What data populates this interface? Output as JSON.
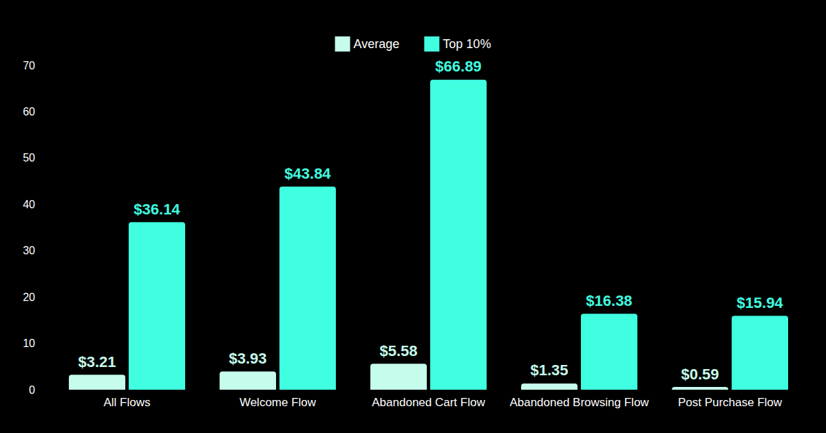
{
  "chart_data": {
    "type": "bar",
    "categories": [
      "All Flows",
      "Welcome Flow",
      "Abandoned Cart Flow",
      "Abandoned Browsing Flow",
      "Post Purchase Flow"
    ],
    "series": [
      {
        "name": "Average",
        "color": "#c6fcec",
        "values": [
          3.21,
          3.93,
          5.58,
          1.35,
          0.59
        ],
        "value_labels": [
          "$3.21",
          "$3.93",
          "$5.58",
          "$1.35",
          "$0.59"
        ]
      },
      {
        "name": "Top 10%",
        "color": "#40ffe0",
        "values": [
          36.14,
          43.84,
          66.89,
          16.38,
          15.94
        ],
        "value_labels": [
          "$36.14",
          "$43.84",
          "$66.89",
          "$16.38",
          "$15.94"
        ]
      }
    ],
    "ylim": [
      0,
      70
    ],
    "yticks": [
      0,
      10,
      20,
      30,
      40,
      50,
      60,
      70
    ],
    "grid": false,
    "legend": "top",
    "data_labels": true
  }
}
